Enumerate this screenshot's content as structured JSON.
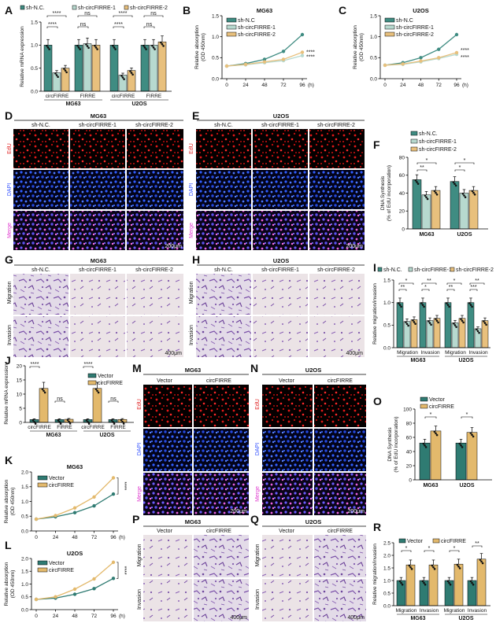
{
  "panels": {
    "A": "A",
    "B": "B",
    "C": "C",
    "D": "D",
    "E": "E",
    "F": "F",
    "G": "G",
    "H": "H",
    "I": "I",
    "J": "J",
    "K": "K",
    "L": "L",
    "M": "M",
    "N": "N",
    "O": "O",
    "P": "P",
    "Q": "Q",
    "R": "R"
  },
  "cells": {
    "mg63": "MG63",
    "u2os": "U2OS"
  },
  "groups": {
    "nc": "sh-N.C.",
    "nc_alt": "sh-N.C",
    "sh1": "sh-circFIRRE-1",
    "sh2": "sh-circFIRRE-2",
    "vector": "Vector",
    "circ": "circFIRRE"
  },
  "stains": {
    "edu": "EdU",
    "dapi": "DAPI",
    "merge": "Merge",
    "migration": "Migration",
    "invasion": "Invasion"
  },
  "scale": {
    "s200": "200μm",
    "s400": "400μm"
  },
  "axes": {
    "mrna": "Relative mRNA expression",
    "od_a": "Relative absorption",
    "od_b": "(OD 450nm)",
    "dna_a": "DNA Synthesis",
    "dna_b": "(% of EdU incorporation)",
    "mig": "Relative migration/invasion",
    "hours": "(h)"
  },
  "sig": {
    "s4": "****",
    "s3": "***",
    "s2": "**",
    "s1": "*",
    "ns": "ns"
  },
  "colors": {
    "nc": "#3f8c82",
    "sh1": "#b7d9cf",
    "sh2": "#e8c07d",
    "vector": "#2f7b72",
    "circ": "#e3b96c"
  },
  "chart_data": [
    {
      "id": "A",
      "type": "bar",
      "ylabel": "Relative mRNA expression",
      "ylim": [
        0,
        1.5
      ],
      "yticks": [
        0,
        0.5,
        1.0,
        1.5
      ],
      "categories": [
        "circFIRRE",
        "FIRRE",
        "circFIRRE",
        "FIRRE"
      ],
      "groups": [
        "MG63",
        "U2OS"
      ],
      "series": [
        {
          "name": "sh-N.C.",
          "values": [
            1.0,
            1.0,
            1.0,
            1.0
          ]
        },
        {
          "name": "sh-circFIRRE-1",
          "values": [
            0.4,
            1.03,
            0.35,
            1.0
          ]
        },
        {
          "name": "sh-circFIRRE-2",
          "values": [
            0.5,
            1.0,
            0.45,
            1.07
          ]
        }
      ]
    },
    {
      "id": "B",
      "type": "line",
      "title": "MG63",
      "ylabel": "Relative absorption (OD 450nm)",
      "x": [
        0,
        24,
        48,
        72,
        96
      ],
      "ylim": [
        0,
        1.5
      ],
      "yticks": [
        0.0,
        0.5,
        1.0,
        1.5
      ],
      "series": [
        {
          "name": "sh-N.C",
          "values": [
            0.3,
            0.36,
            0.46,
            0.65,
            1.05
          ]
        },
        {
          "name": "sh-circFIRRE-1",
          "values": [
            0.3,
            0.33,
            0.38,
            0.43,
            0.55
          ]
        },
        {
          "name": "sh-circFIRRE-2",
          "values": [
            0.3,
            0.34,
            0.4,
            0.46,
            0.63
          ]
        }
      ]
    },
    {
      "id": "C",
      "type": "line",
      "title": "U2OS",
      "ylabel": "Relative absorption (OD 450nm)",
      "x": [
        0,
        24,
        48,
        72,
        96
      ],
      "ylim": [
        0,
        1.5
      ],
      "yticks": [
        0.0,
        0.5,
        1.0,
        1.5
      ],
      "series": [
        {
          "name": "sh-N.C",
          "values": [
            0.32,
            0.38,
            0.5,
            0.7,
            1.05
          ]
        },
        {
          "name": "sh-circFIRRE-1",
          "values": [
            0.32,
            0.34,
            0.4,
            0.48,
            0.58
          ]
        },
        {
          "name": "sh-circFIRRE-2",
          "values": [
            0.32,
            0.35,
            0.42,
            0.5,
            0.62
          ]
        }
      ]
    },
    {
      "id": "F",
      "type": "bar",
      "ylabel": "DNA Synthesis (% of EdU incorporation)",
      "ylim": [
        0,
        80
      ],
      "yticks": [
        0,
        20,
        40,
        60,
        80
      ],
      "categories": [
        "MG63",
        "U2OS"
      ],
      "series": [
        {
          "name": "sh-N.C.",
          "values": [
            55,
            53
          ]
        },
        {
          "name": "sh-circFIRRE-1",
          "values": [
            38,
            40
          ]
        },
        {
          "name": "sh-circFIRRE-2",
          "values": [
            43,
            43
          ]
        }
      ]
    },
    {
      "id": "I",
      "type": "bar",
      "ylabel": "Relative migration/invasion",
      "ylim": [
        0,
        1.5
      ],
      "yticks": [
        0.0,
        0.5,
        1.0,
        1.5
      ],
      "categories": [
        "Migration",
        "Invasion",
        "Migration",
        "Invasion"
      ],
      "groups": [
        "MG63",
        "U2OS"
      ],
      "series": [
        {
          "name": "sh-N.C.",
          "values": [
            1.0,
            1.0,
            1.0,
            1.0
          ]
        },
        {
          "name": "sh-circFIRRE-1",
          "values": [
            0.58,
            0.6,
            0.55,
            0.42
          ]
        },
        {
          "name": "sh-circFIRRE-2",
          "values": [
            0.62,
            0.65,
            0.65,
            0.6
          ]
        }
      ]
    },
    {
      "id": "J",
      "type": "bar",
      "ylabel": "Relative mRNA expression",
      "ylim": [
        0,
        20
      ],
      "yticks": [
        0,
        5,
        10,
        15,
        20
      ],
      "categories": [
        "circFIRRE",
        "FIRRE",
        "circFIRRE",
        "FIRRE"
      ],
      "groups": [
        "MG63",
        "U2OS"
      ],
      "series": [
        {
          "name": "Vector",
          "values": [
            1.0,
            1.0,
            1.0,
            1.0
          ]
        },
        {
          "name": "circFIRRE",
          "values": [
            12,
            1.1,
            12,
            1.05
          ]
        }
      ]
    },
    {
      "id": "K",
      "type": "line",
      "title": "MG63",
      "ylabel": "Relative absorption (OD 450nm)",
      "x": [
        0,
        24,
        48,
        72,
        96
      ],
      "ylim": [
        0,
        2.0
      ],
      "yticks": [
        0.0,
        0.5,
        1.0,
        1.5,
        2.0
      ],
      "series": [
        {
          "name": "Vector",
          "values": [
            0.4,
            0.48,
            0.62,
            0.85,
            1.25
          ]
        },
        {
          "name": "circFIRRE",
          "values": [
            0.4,
            0.52,
            0.78,
            1.15,
            1.8
          ]
        }
      ]
    },
    {
      "id": "L",
      "type": "line",
      "title": "U2OS",
      "ylabel": "Relative absorption (OD 450nm)",
      "x": [
        0,
        24,
        48,
        72,
        96
      ],
      "ylim": [
        0,
        2.0
      ],
      "yticks": [
        0.0,
        0.5,
        1.0,
        1.5,
        2.0
      ],
      "series": [
        {
          "name": "Vector",
          "values": [
            0.4,
            0.45,
            0.6,
            0.82,
            1.22
          ]
        },
        {
          "name": "circFIRRE",
          "values": [
            0.4,
            0.5,
            0.8,
            1.2,
            1.85
          ]
        }
      ]
    },
    {
      "id": "O",
      "type": "bar",
      "ylabel": "DNA Synthesis (% of EdU incorporation)",
      "ylim": [
        0,
        100
      ],
      "yticks": [
        0,
        20,
        40,
        60,
        80,
        100
      ],
      "categories": [
        "MG63",
        "U2OS"
      ],
      "series": [
        {
          "name": "Vector",
          "values": [
            52,
            52
          ]
        },
        {
          "name": "circFIRRE",
          "values": [
            69,
            67
          ]
        }
      ]
    },
    {
      "id": "R",
      "type": "bar",
      "ylabel": "Relative migration/invasion",
      "ylim": [
        0,
        2.5
      ],
      "yticks": [
        0.0,
        0.5,
        1.0,
        1.5,
        2.0,
        2.5
      ],
      "categories": [
        "Migration",
        "Invasion",
        "Migration",
        "Invasion"
      ],
      "groups": [
        "MG63",
        "U2OS"
      ],
      "series": [
        {
          "name": "Vector",
          "values": [
            1.0,
            1.0,
            1.0,
            1.0
          ]
        },
        {
          "name": "circFIRRE",
          "values": [
            1.62,
            1.62,
            1.65,
            1.85
          ]
        }
      ]
    }
  ]
}
